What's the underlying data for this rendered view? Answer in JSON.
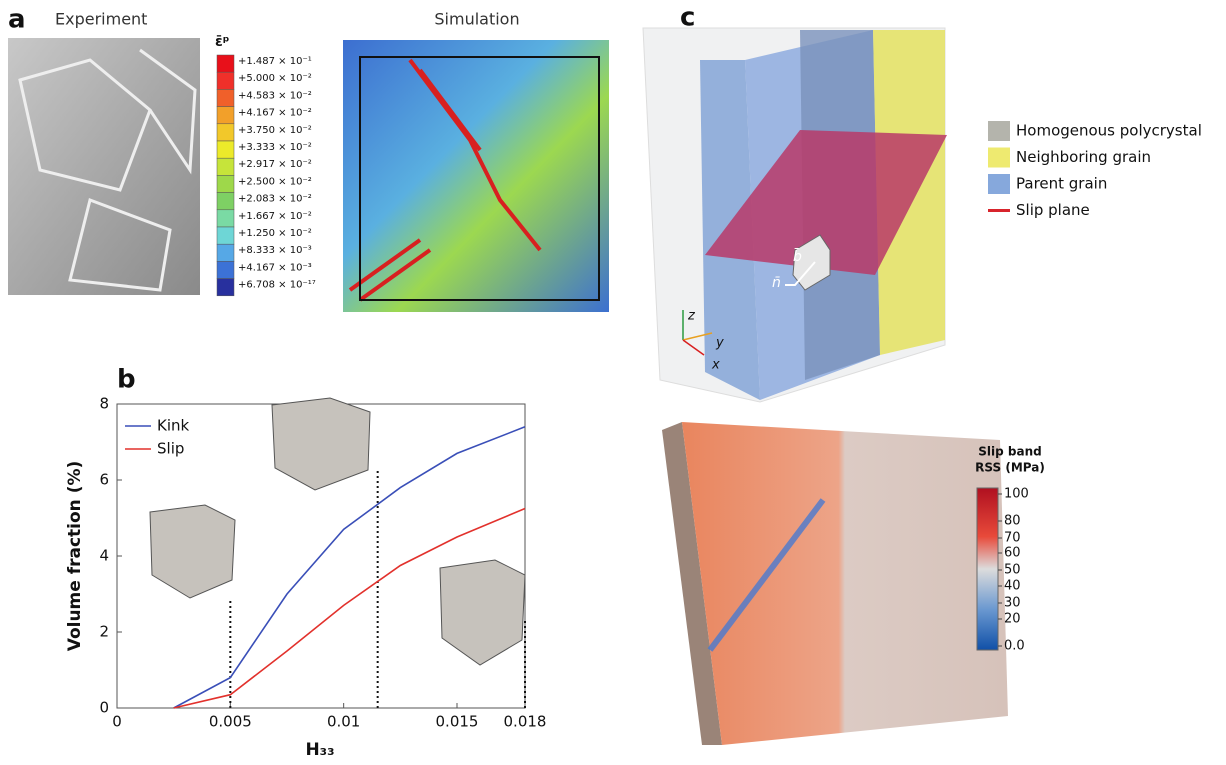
{
  "panel_a": {
    "label": "a",
    "experiment_title": "Experiment",
    "simulation_title": "Simulation",
    "colorbar_title": "ε̄ᵖ",
    "colorbar_labels": [
      "+1.487 × 10⁻¹",
      "+5.000 × 10⁻²",
      "+4.583 × 10⁻²",
      "+4.167 × 10⁻²",
      "+3.750 × 10⁻²",
      "+3.333 × 10⁻²",
      "+2.917 × 10⁻²",
      "+2.500 × 10⁻²",
      "+2.083 × 10⁻²",
      "+1.667 × 10⁻²",
      "+1.250 × 10⁻²",
      "+8.333 × 10⁻³",
      "+4.167 × 10⁻³",
      "+6.708 × 10⁻¹⁷"
    ],
    "colorbar_colors": [
      "#e8101a",
      "#f0302a",
      "#f0602a",
      "#f2a02a",
      "#f2c82a",
      "#ecea2a",
      "#c6e43a",
      "#9ed84a",
      "#7ed064",
      "#7adaa4",
      "#6ed6d6",
      "#56a8e6",
      "#3c72d6",
      "#28309e"
    ]
  },
  "chart_data": {
    "type": "line",
    "label": "b",
    "xlabel": "H₃₃",
    "ylabel": "Volume fraction (%)",
    "x": [
      0.0025,
      0.005,
      0.0075,
      0.01,
      0.0125,
      0.015,
      0.018
    ],
    "series": [
      {
        "name": "Kink",
        "color": "#3a4fb8",
        "values": [
          0,
          0.8,
          3.0,
          4.7,
          5.8,
          6.7,
          7.4
        ]
      },
      {
        "name": "Slip",
        "color": "#e2312c",
        "values": [
          0,
          0.35,
          1.5,
          2.7,
          3.75,
          4.5,
          5.25
        ]
      }
    ],
    "xlim": [
      0,
      0.018
    ],
    "xticks": [
      0,
      0.005,
      0.01,
      0.015,
      0.018
    ],
    "ylim": [
      0,
      8
    ],
    "yticks": [
      0,
      2,
      4,
      6,
      8
    ],
    "reference_lines": [
      0.005,
      0.0115,
      0.018
    ],
    "legend": "upper left"
  },
  "panel_c": {
    "label": "c",
    "legend": [
      {
        "name": "Homogenous polycrystal",
        "color": "#b4b4ac"
      },
      {
        "name": "Neighboring grain",
        "color": "#eeea70"
      },
      {
        "name": "Parent grain",
        "color": "#86a8dc"
      },
      {
        "name": "Slip plane",
        "color": "#d8242c"
      }
    ],
    "axes": [
      "z",
      "y",
      "x"
    ],
    "vectors": [
      "n̄",
      "b̄"
    ],
    "colorbar_title": [
      "Slip band",
      "RSS (MPa)"
    ],
    "colorbar_ticks": [
      "100",
      "80",
      "70",
      "60",
      "50",
      "40",
      "30",
      "20",
      "0.0"
    ]
  }
}
